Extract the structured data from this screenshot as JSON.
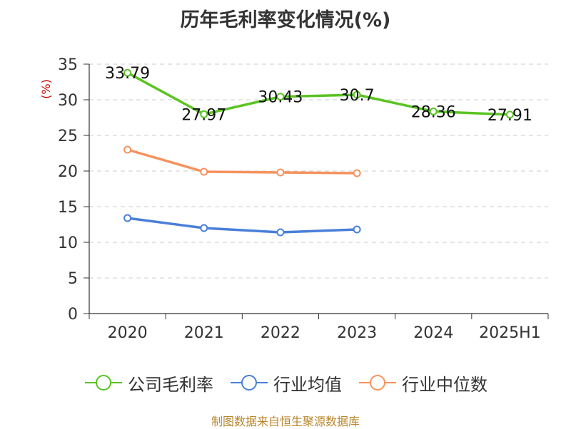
{
  "chart_data": {
    "type": "line",
    "title": "历年毛利率变化情况(%)",
    "ylabel": "(%)",
    "categories": [
      "2020",
      "2021",
      "2022",
      "2023",
      "2024",
      "2025H1"
    ],
    "ylim": [
      0,
      35
    ],
    "yticks": [
      "0",
      "5",
      "10",
      "15",
      "20",
      "25",
      "30",
      "35"
    ],
    "grid": true,
    "legend_position": "bottom",
    "series": [
      {
        "name": "公司毛利率",
        "color": "#5ac422",
        "values": [
          33.79,
          27.97,
          30.43,
          30.7,
          28.36,
          27.91
        ],
        "labels": [
          "33.79",
          "27.97",
          "30.43",
          "30.7",
          "28.36",
          "27.91"
        ]
      },
      {
        "name": "行业均值",
        "color": "#4a7fd9",
        "values": [
          13.4,
          12.0,
          11.4,
          11.8,
          null,
          null
        ]
      },
      {
        "name": "行业中位数",
        "color": "#f5925e",
        "values": [
          23.0,
          19.9,
          19.8,
          19.7,
          null,
          null
        ]
      }
    ]
  },
  "source_note": "制图数据来自恒生聚源数据库"
}
